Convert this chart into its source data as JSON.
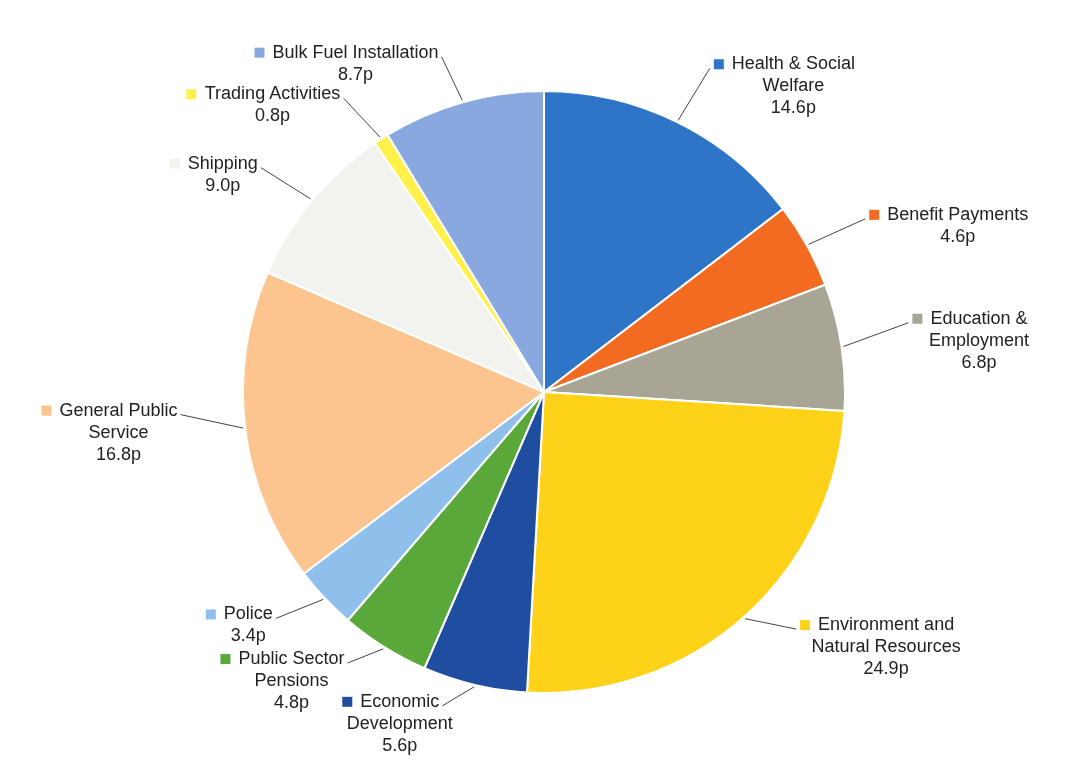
{
  "chart_data": {
    "type": "pie",
    "categories": [
      "Health & Social Welfare",
      "Benefit Payments",
      "Education & Employment",
      "Environment and Natural Resources",
      "Economic Development",
      "Public Sector Pensions",
      "Police",
      "General Public Service",
      "Shipping",
      "Trading Activities",
      "Bulk Fuel Installation"
    ],
    "values": [
      14.6,
      4.6,
      6.8,
      24.9,
      5.6,
      4.8,
      3.4,
      16.8,
      9.0,
      0.8,
      8.7
    ],
    "value_labels": [
      "14.6p",
      "4.6p",
      "6.8p",
      "24.9p",
      "5.6p",
      "4.8p",
      "3.4p",
      "16.8p",
      "9.0p",
      "0.8p",
      "8.7p"
    ],
    "colors": [
      "#2e75c8",
      "#f26b21",
      "#a8a594",
      "#ffd21a",
      "#1f4ea0",
      "#5aa83a",
      "#8fc0ec",
      "#fcc58f",
      "#f2f2ee",
      "#fff04a",
      "#8aa8e0"
    ],
    "legend": true
  }
}
